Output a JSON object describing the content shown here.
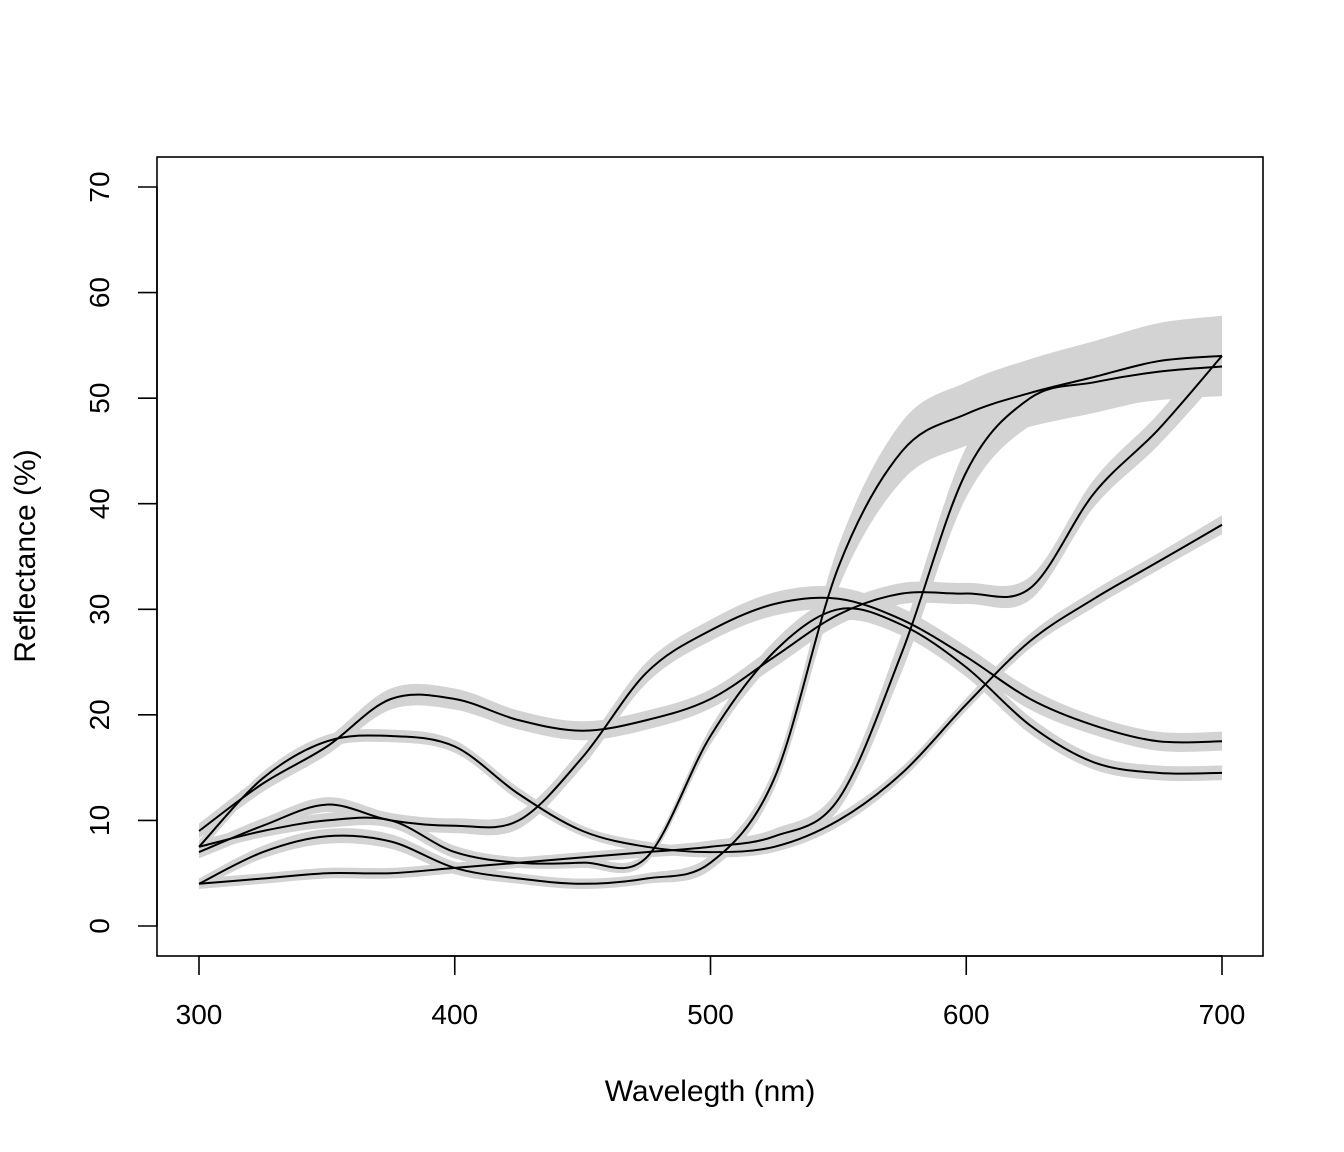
{
  "chart_data": {
    "type": "line",
    "title": "",
    "xlabel": "Wavelegth (nm)",
    "ylabel": "Reflectance (%)",
    "xlim": [
      300,
      700
    ],
    "ylim": [
      0,
      70
    ],
    "xticks": [
      300,
      400,
      500,
      600,
      700
    ],
    "yticks": [
      0,
      10,
      20,
      30,
      40,
      50,
      60,
      70
    ],
    "grid": false,
    "legend": "none",
    "line_color": "#000000",
    "band_color": "#d3d3d3",
    "x": [
      300,
      325,
      350,
      375,
      400,
      425,
      450,
      475,
      500,
      525,
      550,
      575,
      600,
      625,
      650,
      675,
      700
    ],
    "series": [
      {
        "values": [
          7.5,
          14.0,
          17.5,
          18.0,
          17.0,
          12.5,
          9.0,
          7.5,
          7.0,
          7.5,
          10.0,
          14.5,
          21.0,
          27.0,
          31.0,
          34.5,
          38.0
        ],
        "band": [
          0.6,
          0.6,
          0.6,
          0.6,
          0.6,
          0.6,
          0.5,
          0.5,
          0.5,
          0.5,
          0.6,
          0.6,
          0.6,
          0.7,
          0.8,
          0.8,
          0.9
        ]
      },
      {
        "values": [
          9.0,
          13.5,
          17.0,
          21.5,
          21.5,
          19.5,
          18.5,
          19.5,
          21.5,
          25.5,
          29.5,
          31.5,
          31.5,
          32.0,
          41.0,
          47.0,
          54.0
        ],
        "band": [
          0.7,
          0.8,
          0.8,
          1.0,
          1.0,
          0.9,
          0.9,
          0.9,
          0.9,
          1.0,
          1.0,
          1.0,
          1.0,
          1.1,
          1.3,
          1.5,
          1.8
        ]
      },
      {
        "values": [
          7.0,
          9.5,
          11.5,
          10.0,
          9.5,
          10.0,
          16.0,
          24.0,
          28.0,
          30.5,
          31.0,
          29.0,
          25.5,
          21.5,
          19.0,
          17.5,
          17.5
        ],
        "band": [
          0.6,
          0.7,
          0.7,
          0.7,
          0.7,
          0.8,
          0.9,
          1.0,
          1.0,
          1.1,
          1.1,
          1.1,
          1.0,
          1.0,
          0.9,
          0.9,
          0.9
        ]
      },
      {
        "values": [
          7.5,
          9.0,
          10.0,
          10.0,
          7.0,
          6.0,
          6.0,
          6.5,
          18.0,
          26.0,
          30.0,
          28.5,
          24.5,
          19.0,
          15.5,
          14.5,
          14.5
        ],
        "band": [
          0.6,
          0.6,
          0.7,
          0.7,
          0.6,
          0.5,
          0.5,
          0.5,
          0.8,
          1.0,
          1.1,
          1.0,
          0.9,
          0.8,
          0.7,
          0.7,
          0.7
        ]
      },
      {
        "values": [
          4.0,
          7.0,
          8.5,
          8.0,
          5.5,
          4.5,
          4.0,
          4.5,
          6.0,
          14.0,
          34.0,
          45.0,
          48.5,
          50.5,
          52.0,
          53.5,
          54.0
        ],
        "band": [
          0.5,
          0.6,
          0.7,
          0.7,
          0.6,
          0.5,
          0.5,
          0.5,
          0.7,
          1.0,
          2.0,
          2.8,
          3.0,
          3.2,
          3.4,
          3.6,
          3.8
        ]
      },
      {
        "values": [
          4.0,
          4.5,
          5.0,
          5.0,
          5.5,
          6.0,
          6.5,
          7.0,
          7.5,
          8.5,
          12.0,
          26.0,
          43.0,
          50.0,
          51.5,
          52.5,
          53.0
        ],
        "band": [
          0.5,
          0.5,
          0.5,
          0.5,
          0.5,
          0.5,
          0.5,
          0.5,
          0.6,
          0.7,
          1.0,
          1.8,
          2.4,
          2.6,
          2.6,
          2.7,
          2.8
        ]
      }
    ]
  }
}
